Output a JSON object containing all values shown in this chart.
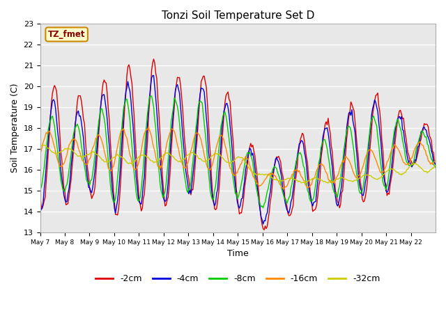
{
  "title": "Tonzi Soil Temperature Set D",
  "xlabel": "Time",
  "ylabel": "Soil Temperature (C)",
  "ylim": [
    13.0,
    23.0
  ],
  "yticks": [
    13.0,
    14.0,
    15.0,
    16.0,
    17.0,
    18.0,
    19.0,
    20.0,
    21.0,
    22.0,
    23.0
  ],
  "series_colors": [
    "#dd0000",
    "#0000dd",
    "#00cc00",
    "#ff8800",
    "#cccc00"
  ],
  "series_labels": [
    "-2cm",
    "-4cm",
    "-8cm",
    "-16cm",
    "-32cm"
  ],
  "legend_label": "TZ_fmet",
  "background_color": "#e8e8e8",
  "x_tick_labels": [
    "May 7",
    "May 8",
    "May 9",
    "May 10",
    "May 11",
    "May 12",
    "May 13",
    "May 14",
    "May 15",
    "May 16",
    "May 17",
    "May 18",
    "May 19",
    "May 20",
    "May 21",
    "May 22"
  ],
  "figsize": [
    6.4,
    4.8
  ],
  "dpi": 100
}
